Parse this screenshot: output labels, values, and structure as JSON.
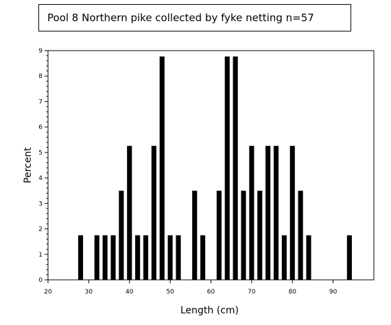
{
  "chart_data": {
    "type": "bar",
    "title": "Pool 8 Northern pike collected by fyke netting n=57",
    "xlabel": "Length (cm)",
    "ylabel": "Percent",
    "xlim": [
      20,
      100
    ],
    "ylim": [
      0,
      9
    ],
    "x_ticks": [
      20,
      30,
      40,
      50,
      60,
      70,
      80,
      90
    ],
    "y_ticks": [
      0,
      1,
      2,
      3,
      4,
      5,
      6,
      7,
      8,
      9
    ],
    "bar_width": 1.2,
    "x": [
      28,
      32,
      34,
      36,
      38,
      40,
      42,
      44,
      46,
      48,
      50,
      52,
      56,
      58,
      62,
      64,
      66,
      68,
      70,
      72,
      74,
      76,
      78,
      80,
      82,
      84,
      94
    ],
    "values": [
      1.75,
      1.75,
      1.75,
      1.75,
      3.5,
      5.26,
      1.75,
      1.75,
      5.26,
      8.77,
      1.75,
      1.75,
      3.5,
      1.75,
      3.5,
      8.77,
      8.77,
      3.5,
      5.26,
      3.5,
      5.26,
      5.26,
      1.75,
      5.26,
      3.5,
      1.75,
      1.75
    ],
    "bar_color": "#000000",
    "grid": false
  }
}
